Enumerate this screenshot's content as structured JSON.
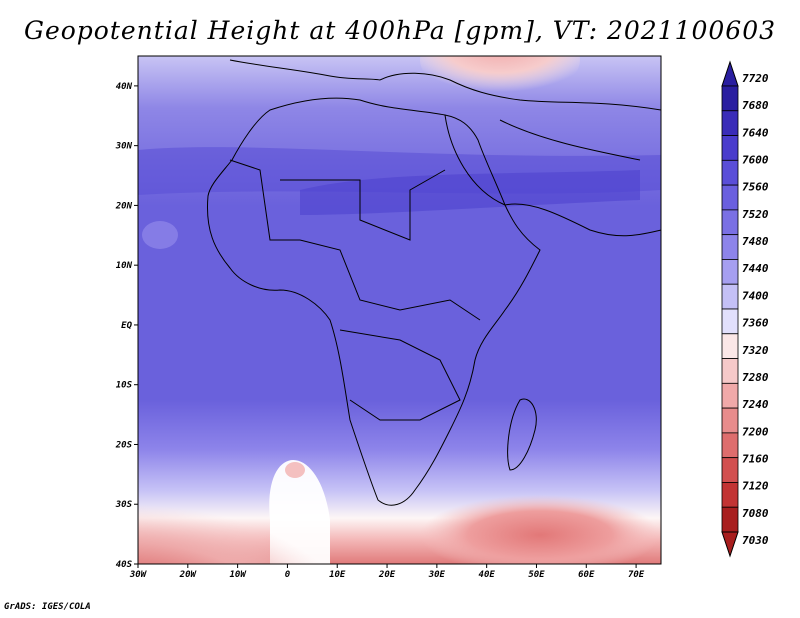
{
  "title": "Geopotential Height at 400hPa [gpm], VT: 2021100603",
  "credit": "GrADS: IGES/COLA",
  "map": {
    "lat_labels": [
      "40N",
      "30N",
      "20N",
      "10N",
      "EQ",
      "10S",
      "20S",
      "30S",
      "40S"
    ],
    "lat_values": [
      40,
      30,
      20,
      10,
      0,
      -10,
      -20,
      -30,
      -40
    ],
    "lon_labels": [
      "30W",
      "20W",
      "10W",
      "0",
      "10E",
      "20E",
      "30E",
      "40E",
      "50E",
      "60E",
      "70E"
    ],
    "lon_values": [
      -30,
      -20,
      -10,
      0,
      10,
      20,
      30,
      40,
      50,
      60,
      70
    ],
    "lat_range": [
      -40,
      45
    ],
    "lon_range": [
      -30,
      75
    ]
  },
  "colorbar": {
    "levels": [
      "7720",
      "7680",
      "7640",
      "7600",
      "7560",
      "7520",
      "7480",
      "7440",
      "7400",
      "7360",
      "7320",
      "7280",
      "7240",
      "7200",
      "7160",
      "7120",
      "7080",
      "7030"
    ],
    "colors": [
      "#2a1ea0",
      "#3a2cb8",
      "#4a3ccc",
      "#5a4ed8",
      "#6a5fdf",
      "#7a70e4",
      "#8d84ea",
      "#a69ff0",
      "#c4c0f6",
      "#e2e0fc",
      "#fbe7e7",
      "#f6c9c9",
      "#f0a9a9",
      "#e88c8c",
      "#de6d6d",
      "#d24f4f",
      "#c23333",
      "#a81e1e"
    ]
  }
}
